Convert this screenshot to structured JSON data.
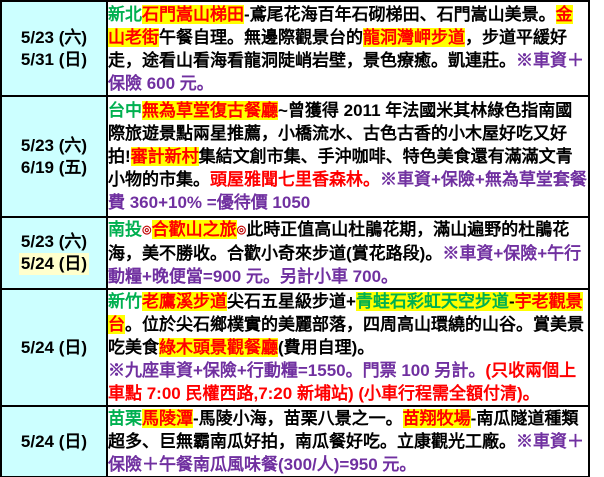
{
  "colors": {
    "date_column_bg": "#CCFFFF",
    "text_highlight": "#FFFF00",
    "date_highlight": "#FFFFCC",
    "region_green": "#00B050",
    "emphasis_red": "#FF0000",
    "price_purple": "#7030A0",
    "border": "#000000"
  },
  "table": {
    "rows": [
      {
        "dates": [
          {
            "text": "5/23 (六)",
            "highlight": false
          },
          {
            "text": "5/31 (日)",
            "highlight": false
          }
        ],
        "segments": [
          {
            "text": "新北",
            "style": "green"
          },
          {
            "text": "石門嵩山梯田",
            "style": "red-hl"
          },
          {
            "text": "-鳶尾花海百年石砌梯田、石門嵩山美景。",
            "style": "black"
          },
          {
            "text": "金山老街",
            "style": "red-hl"
          },
          {
            "text": "午餐自理。無邊際觀景台的",
            "style": "black"
          },
          {
            "text": "龍洞灣岬步道",
            "style": "red-hl"
          },
          {
            "text": "，步道平緩好走，途看山看海看龍洞陡峭岩壁，景色療癒。凱連莊。",
            "style": "black"
          },
          {
            "text": "※車資＋保險 600 元。",
            "style": "purple"
          }
        ]
      },
      {
        "dates": [
          {
            "text": "5/23 (六)",
            "highlight": false
          },
          {
            "text": "6/19 (五)",
            "highlight": false
          }
        ],
        "segments": [
          {
            "text": "台中",
            "style": "green"
          },
          {
            "text": "無為草堂復古餐廳",
            "style": "red-hl"
          },
          {
            "text": "~曾獲得 2011 年法國米其林綠色指南國際旅遊景點兩星推薦，小橋流水、古色古香的小木屋好吃又好拍!",
            "style": "black"
          },
          {
            "text": "審計新村",
            "style": "red-hl"
          },
          {
            "text": "集結文創市集、手沖咖啡、特色美食還有滿滿文青小物的市集。",
            "style": "black"
          },
          {
            "text": "頭屋雅聞七里香森林。",
            "style": "red"
          },
          {
            "text": "※車資+保險+無為草堂套餐費 360+10% =優待價 1050",
            "style": "purple"
          }
        ]
      },
      {
        "dates": [
          {
            "text": "5/23 (六)",
            "highlight": false
          },
          {
            "text": "5/24 (日)",
            "highlight": true
          }
        ],
        "segments": [
          {
            "text": "南投",
            "style": "green"
          },
          {
            "text": "◎",
            "style": "red-symbol"
          },
          {
            "text": "合歡山之旅",
            "style": "red-hl"
          },
          {
            "text": "◎",
            "style": "red-symbol"
          },
          {
            "text": "此時正值高山杜鵑花期，滿山遍野的杜鵑花海，美不勝收。合歡小奇來步道(賞花路段)。",
            "style": "black"
          },
          {
            "text": "※車資+保險+午行動糧+晚便當=900 元。另計小車 700。",
            "style": "purple"
          }
        ]
      },
      {
        "dates": [
          {
            "text": "5/24 (日)",
            "highlight": false
          }
        ],
        "segments": [
          {
            "text": "新竹",
            "style": "green"
          },
          {
            "text": "老鷹溪步道",
            "style": "red-hl"
          },
          {
            "text": "尖石五星級步道+",
            "style": "black"
          },
          {
            "text": "青蛙石彩虹天空步道",
            "style": "green-hl"
          },
          {
            "text": "-",
            "style": "black-hl"
          },
          {
            "text": "宇老觀景台",
            "style": "red-hl"
          },
          {
            "text": "。位於尖石鄉樸實的美麗部落，四周高山環繞的山谷。賞美景吃美食",
            "style": "black"
          },
          {
            "text": "綠木頭景觀餐廳",
            "style": "red-hl"
          },
          {
            "text": "(費用自理)。",
            "style": "black"
          },
          {
            "text": "\n",
            "style": "black"
          },
          {
            "text": "※九座車資+保險+行動糧=1550。門票 100 另計。",
            "style": "purple"
          },
          {
            "text": "(只收兩個上車點 7:00 民權西路,7:20 新埔站) (小車行程需全額付清)。",
            "style": "red"
          }
        ]
      },
      {
        "dates": [
          {
            "text": "5/24 (日)",
            "highlight": false
          }
        ],
        "segments": [
          {
            "text": "苗栗",
            "style": "green"
          },
          {
            "text": "馬陵潭",
            "style": "red-hl"
          },
          {
            "text": "-馬陵小海，苗栗八景之一。",
            "style": "black"
          },
          {
            "text": "苗翔牧場",
            "style": "red-hl"
          },
          {
            "text": "-南瓜隧道種類超多、巨無霸南瓜好拍，南瓜餐好吃。立康觀光工廠。",
            "style": "black"
          },
          {
            "text": "※車資＋保險＋午餐南瓜風味餐(300/人)=950 元。",
            "style": "purple"
          }
        ]
      }
    ]
  }
}
